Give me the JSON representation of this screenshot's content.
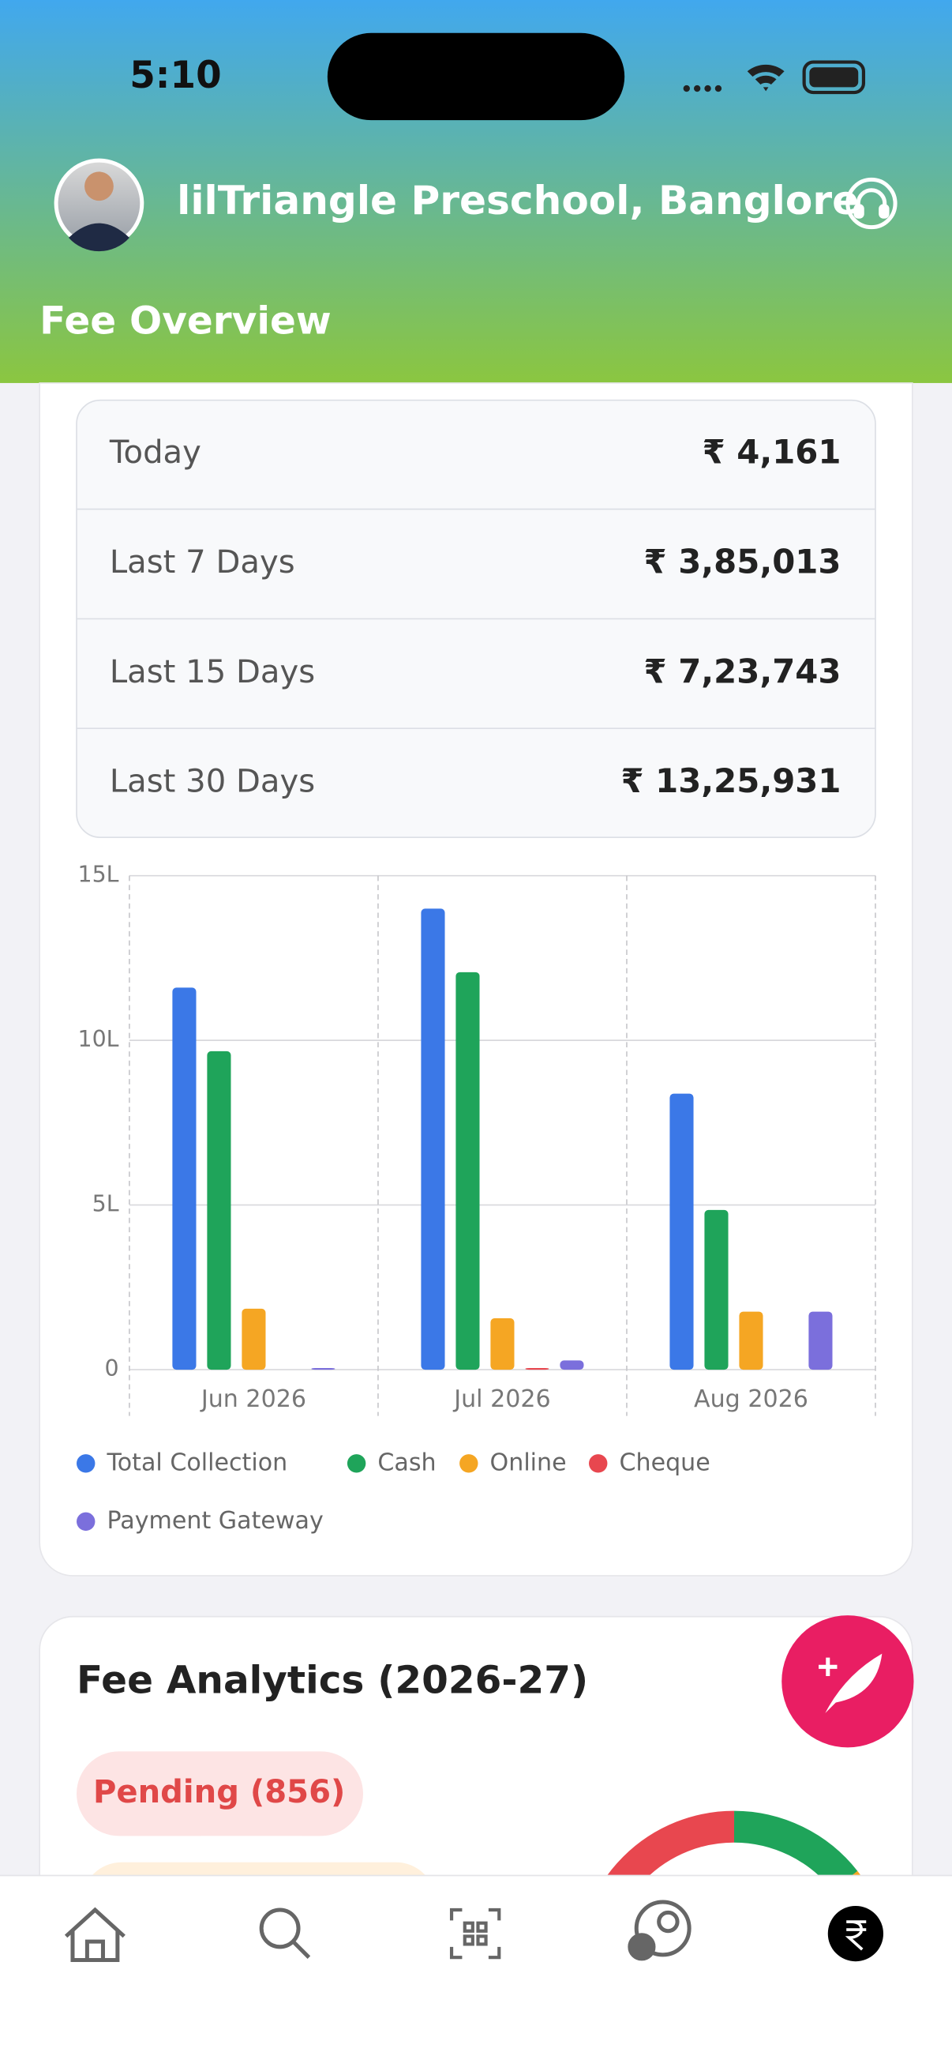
{
  "status_bar": {
    "time": "5:10"
  },
  "header": {
    "school": "lilTriangle Preschool, Banglore",
    "title": "Fee Overview"
  },
  "summary": {
    "rows": [
      [
        "Today",
        "₹ 4,161"
      ],
      [
        "Last 7 Days",
        "₹ 3,85,013"
      ],
      [
        "Last 15 Days",
        "₹ 7,23,743"
      ],
      [
        "Last 30 Days",
        "₹ 13,25,931"
      ]
    ]
  },
  "chart_data": {
    "type": "bar",
    "categories": [
      "Jun 2026",
      "Jul 2026",
      "Aug 2026"
    ],
    "series": [
      {
        "name": "Total Collection",
        "color": "#3b78e7",
        "values": [
          11.6,
          14.0,
          8.38
        ]
      },
      {
        "name": "Cash",
        "color": "#1fa45a",
        "values": [
          9.67,
          12.07,
          4.85
        ]
      },
      {
        "name": "Online",
        "color": "#f5a623",
        "values": [
          1.85,
          1.56,
          1.76
        ]
      },
      {
        "name": "Cheque",
        "color": "#e8474f",
        "values": [
          0,
          0.05,
          0
        ]
      },
      {
        "name": "Payment Gateway",
        "color": "#7b6fdc",
        "values": [
          0.05,
          0.28,
          1.76
        ]
      }
    ],
    "ylim": [
      0,
      15
    ],
    "yticks": [
      0,
      {
        "value": 5,
        "label": "5L"
      },
      {
        "value": 10,
        "label": "10L"
      },
      {
        "value": 15,
        "label": "15L"
      }
    ],
    "grid": true,
    "legend": "bottom"
  },
  "analytics": {
    "title": "Fee Analytics (2026-27)",
    "pending": "Pending (856)"
  }
}
